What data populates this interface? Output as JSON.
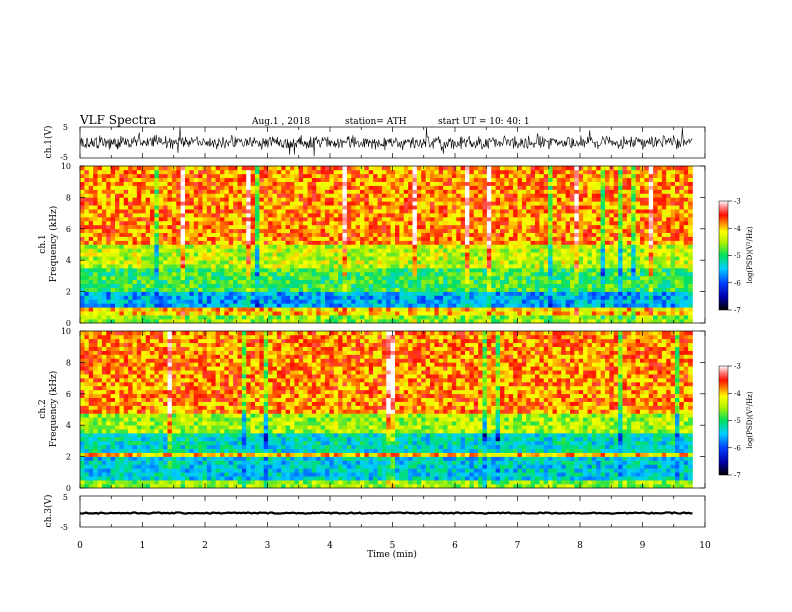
{
  "header": {
    "title": "VLF  Spectra",
    "date": "Aug.1  , 2018",
    "station": "station= ATH",
    "start_ut": "start  UT  =    10: 40: 1"
  },
  "chart_data": [
    {
      "type": "line",
      "panel": "ch1-waveform",
      "ylabel": "ch.1(V)",
      "ylim": [
        -5,
        5
      ],
      "yticks": [
        "5",
        "-5"
      ],
      "xlim": [
        0,
        10
      ],
      "data_extent_min": 9.8,
      "series": [
        {
          "values_envelope": [
            -2.5,
            2.5
          ],
          "color": "#000000"
        }
      ]
    },
    {
      "type": "heatmap",
      "panel": "ch1-spectrogram",
      "ylabel": "ch.1",
      "ylabel2": "Frequency  (kHz)",
      "ylim": [
        0,
        10
      ],
      "yticks": [
        "0",
        "2",
        "4",
        "6",
        "8",
        "10"
      ],
      "xlim": [
        0,
        10
      ],
      "colorbar_label": "log(PSD)(V²/Hz)",
      "colorbar_range": [
        -7,
        -3
      ],
      "colorbar_ticks": [
        "-3",
        "-4",
        "-5",
        "-6",
        "-7"
      ],
      "bands_khz": [
        {
          "from": 0,
          "to": 0.6,
          "level": -4.6
        },
        {
          "from": 0.6,
          "to": 1,
          "level": -4.0
        },
        {
          "from": 1,
          "to": 2,
          "level": -5.6
        },
        {
          "from": 2,
          "to": 3.5,
          "level": -4.9
        },
        {
          "from": 3.5,
          "to": 5,
          "level": -4.4
        },
        {
          "from": 5,
          "to": 10,
          "level": -3.8
        }
      ]
    },
    {
      "type": "heatmap",
      "panel": "ch2-spectrogram",
      "ylabel": "ch.2",
      "ylabel2": "Frequency  (kHz)",
      "ylim": [
        0,
        10
      ],
      "yticks": [
        "0",
        "2",
        "4",
        "6",
        "8",
        "10"
      ],
      "xlim": [
        0,
        10
      ],
      "colorbar_label": "log(PSD)(V²/Hz)",
      "colorbar_range": [
        -7,
        -3
      ],
      "colorbar_ticks": [
        "-3",
        "-4",
        "-5",
        "-6",
        "-7"
      ],
      "bands_khz": [
        {
          "from": 0,
          "to": 0.6,
          "level": -4.6
        },
        {
          "from": 0.6,
          "to": 2,
          "level": -5.4
        },
        {
          "from": 2,
          "to": 2.2,
          "level": -4.0
        },
        {
          "from": 2.2,
          "to": 3.6,
          "level": -5.3
        },
        {
          "from": 3.6,
          "to": 4.8,
          "level": -4.5
        },
        {
          "from": 4.8,
          "to": 10,
          "level": -3.8
        }
      ]
    },
    {
      "type": "line",
      "panel": "ch3-waveform",
      "ylabel": "ch.3(V)",
      "ylim": [
        -5,
        5
      ],
      "yticks": [
        "5",
        "-5"
      ],
      "xlim": [
        0,
        10
      ],
      "xlabel": "Time  (min)",
      "xticks": [
        "0",
        "1",
        "2",
        "3",
        "4",
        "5",
        "6",
        "7",
        "8",
        "9",
        "10"
      ],
      "data_extent_min": 9.8,
      "series": [
        {
          "values_envelope": [
            -0.7,
            -0.3
          ],
          "color": "#000000"
        }
      ]
    }
  ]
}
